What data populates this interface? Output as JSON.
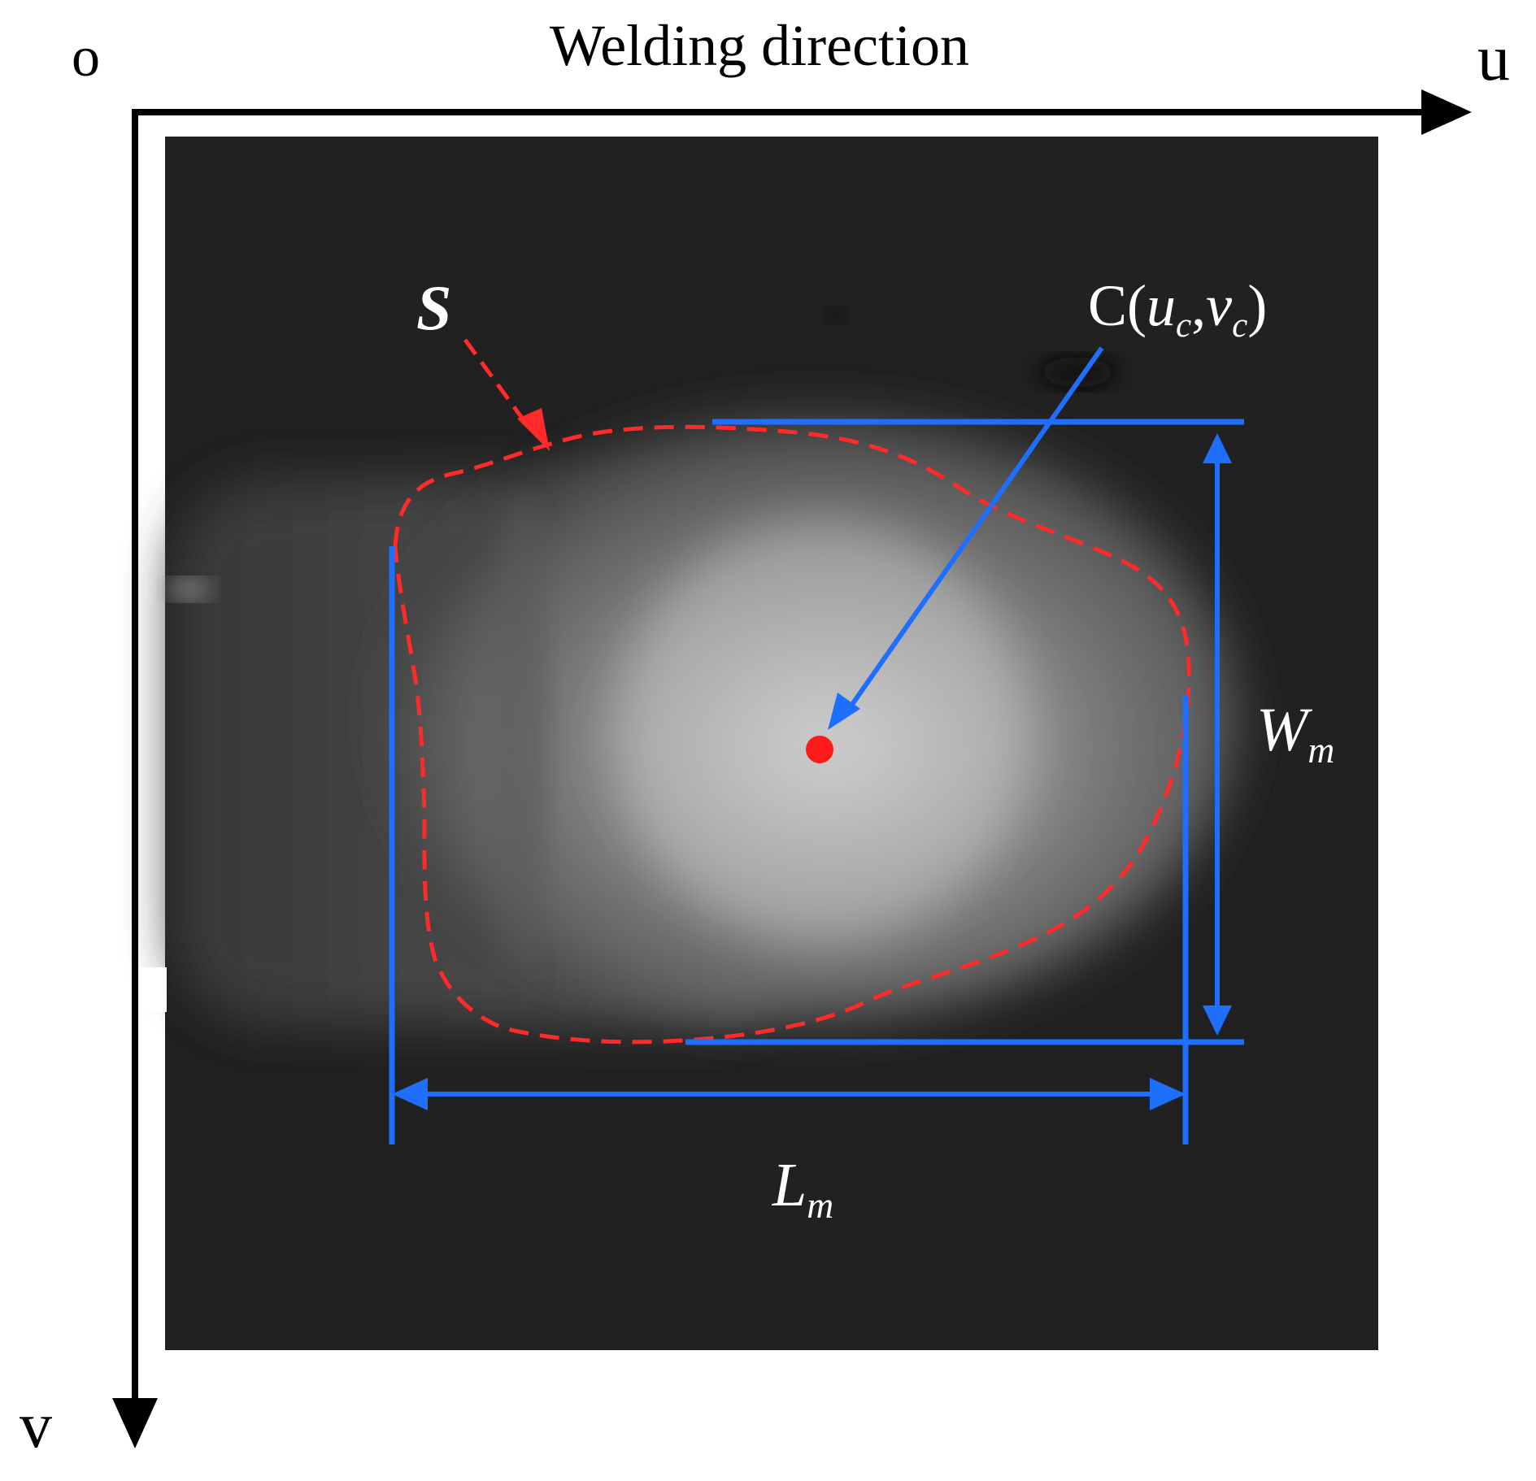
{
  "axes": {
    "origin_label": "o",
    "horizontal_label": "u",
    "vertical_label": "v",
    "title": "Welding direction"
  },
  "annotations": {
    "contour_label": "S",
    "centroid_label": "C(",
    "centroid_u": "u",
    "centroid_u_sub": "c",
    "centroid_sep": ",",
    "centroid_v": "v",
    "centroid_v_sub": "c",
    "centroid_close": ")",
    "width_label": "W",
    "width_sub": "m",
    "length_label": "L",
    "length_sub": "m"
  },
  "colors": {
    "contour": "#ff2a2a",
    "measure": "#1f6fff",
    "centroid": "#ff1a1a",
    "background": "#222222"
  }
}
